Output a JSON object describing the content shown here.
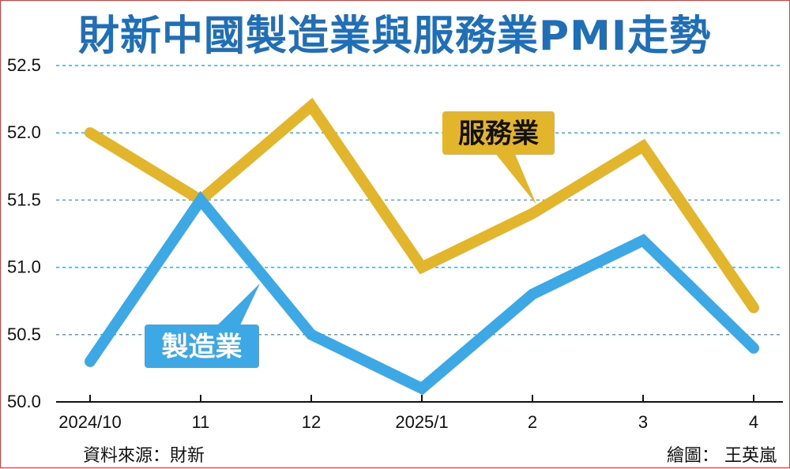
{
  "header": {
    "title": "財新中國製造業與服務業PMI走勢"
  },
  "footer": {
    "source": "資料來源：財新",
    "credit": "繪圖： 王英嵐"
  },
  "colors": {
    "services": "#e3b52a",
    "manufacturing": "#3ca8e6",
    "grid": "#3ca8e6",
    "title": "#1f6fb8"
  },
  "chart_data": {
    "type": "line",
    "title": "財新中國製造業與服務業PMI走勢",
    "categories": [
      "2024/10",
      "11",
      "12",
      "2025/1",
      "2",
      "3",
      "4"
    ],
    "ylim": [
      50.0,
      52.5
    ],
    "yticks": [
      "50.0",
      "50.5",
      "51.0",
      "51.5",
      "52.0",
      "52.5"
    ],
    "grid": true,
    "series": [
      {
        "name": "服務業",
        "values": [
          52.0,
          51.5,
          52.2,
          51.0,
          51.4,
          51.9,
          50.7
        ]
      },
      {
        "name": "製造業",
        "values": [
          50.3,
          51.5,
          50.5,
          50.1,
          50.8,
          51.2,
          50.4
        ]
      }
    ]
  }
}
